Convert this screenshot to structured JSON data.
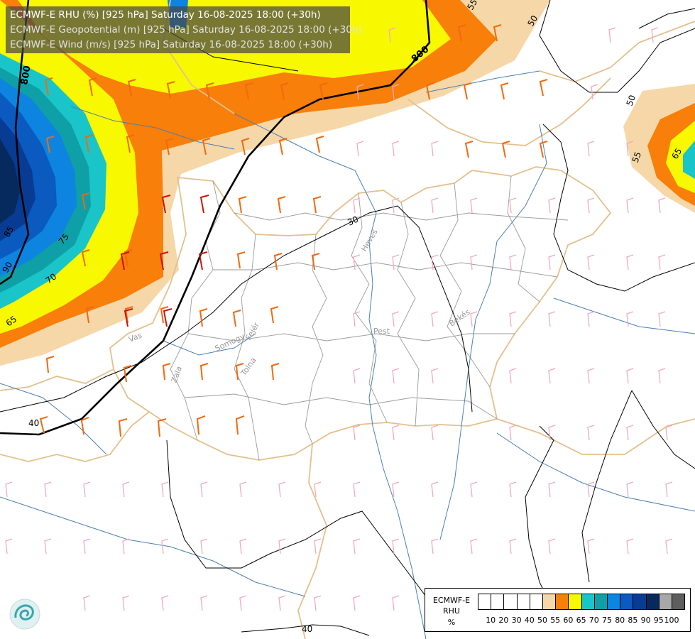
{
  "header": {
    "line1": "ECMWF-E RHU (%) [925 hPa] Saturday 16-08-2025 18:00 (+30h)",
    "line2": "ECMWF-E Geopotential (m) [925 hPa] Saturday 16-08-2025 18:00 (+30h)",
    "line3": "ECMWF-E Wind (m/s) [925 hPa] Saturday 16-08-2025 18:00 (+30h)"
  },
  "colors": {
    "rhu_50": "#f6d7a7",
    "rhu_55": "#f77f0a",
    "rhu_60": "#f8f800",
    "rhu_65": "#19c5c8",
    "rhu_70": "#0f9fa6",
    "rhu_75": "#0d84e0",
    "rhu_80": "#0a5ac0",
    "rhu_85": "#083b93",
    "rhu_90": "#062a5e",
    "border": "#e3c08d",
    "county": "#9b9b9b",
    "river": "#4c7fb3",
    "wind_orange": "#ef6a10",
    "wind_red": "#d01010",
    "wind_pink": "#f2a9c0"
  },
  "map_labels": {
    "regions": [
      "Vas",
      "Zala",
      "Somogy",
      "Fejér",
      "Tolna",
      "Heves",
      "Pest",
      "Békés"
    ],
    "contours": [
      "30",
      "40",
      "40",
      "50",
      "50",
      "55",
      "55",
      "60",
      "65",
      "65",
      "65",
      "70",
      "75",
      "85",
      "90"
    ],
    "geopotential": [
      "800",
      "800"
    ]
  },
  "legend": {
    "title_line1": "ECMWF-E",
    "title_line2": "RHU",
    "title_line3": "%",
    "ticks": [
      "10",
      "20",
      "30",
      "40",
      "50",
      "55",
      "60",
      "65",
      "70",
      "75",
      "80",
      "85",
      "90",
      "95",
      "100"
    ],
    "swatch_colors": [
      "#ffffff",
      "#ffffff",
      "#ffffff",
      "#ffffff",
      "#ffffff",
      "#f6d7a7",
      "#f77f0a",
      "#f8f800",
      "#19c5c8",
      "#0f9fa6",
      "#0d84e0",
      "#0a5ac0",
      "#083b93",
      "#062a5e",
      "#a8a8a8",
      "#5e5e5e"
    ]
  }
}
